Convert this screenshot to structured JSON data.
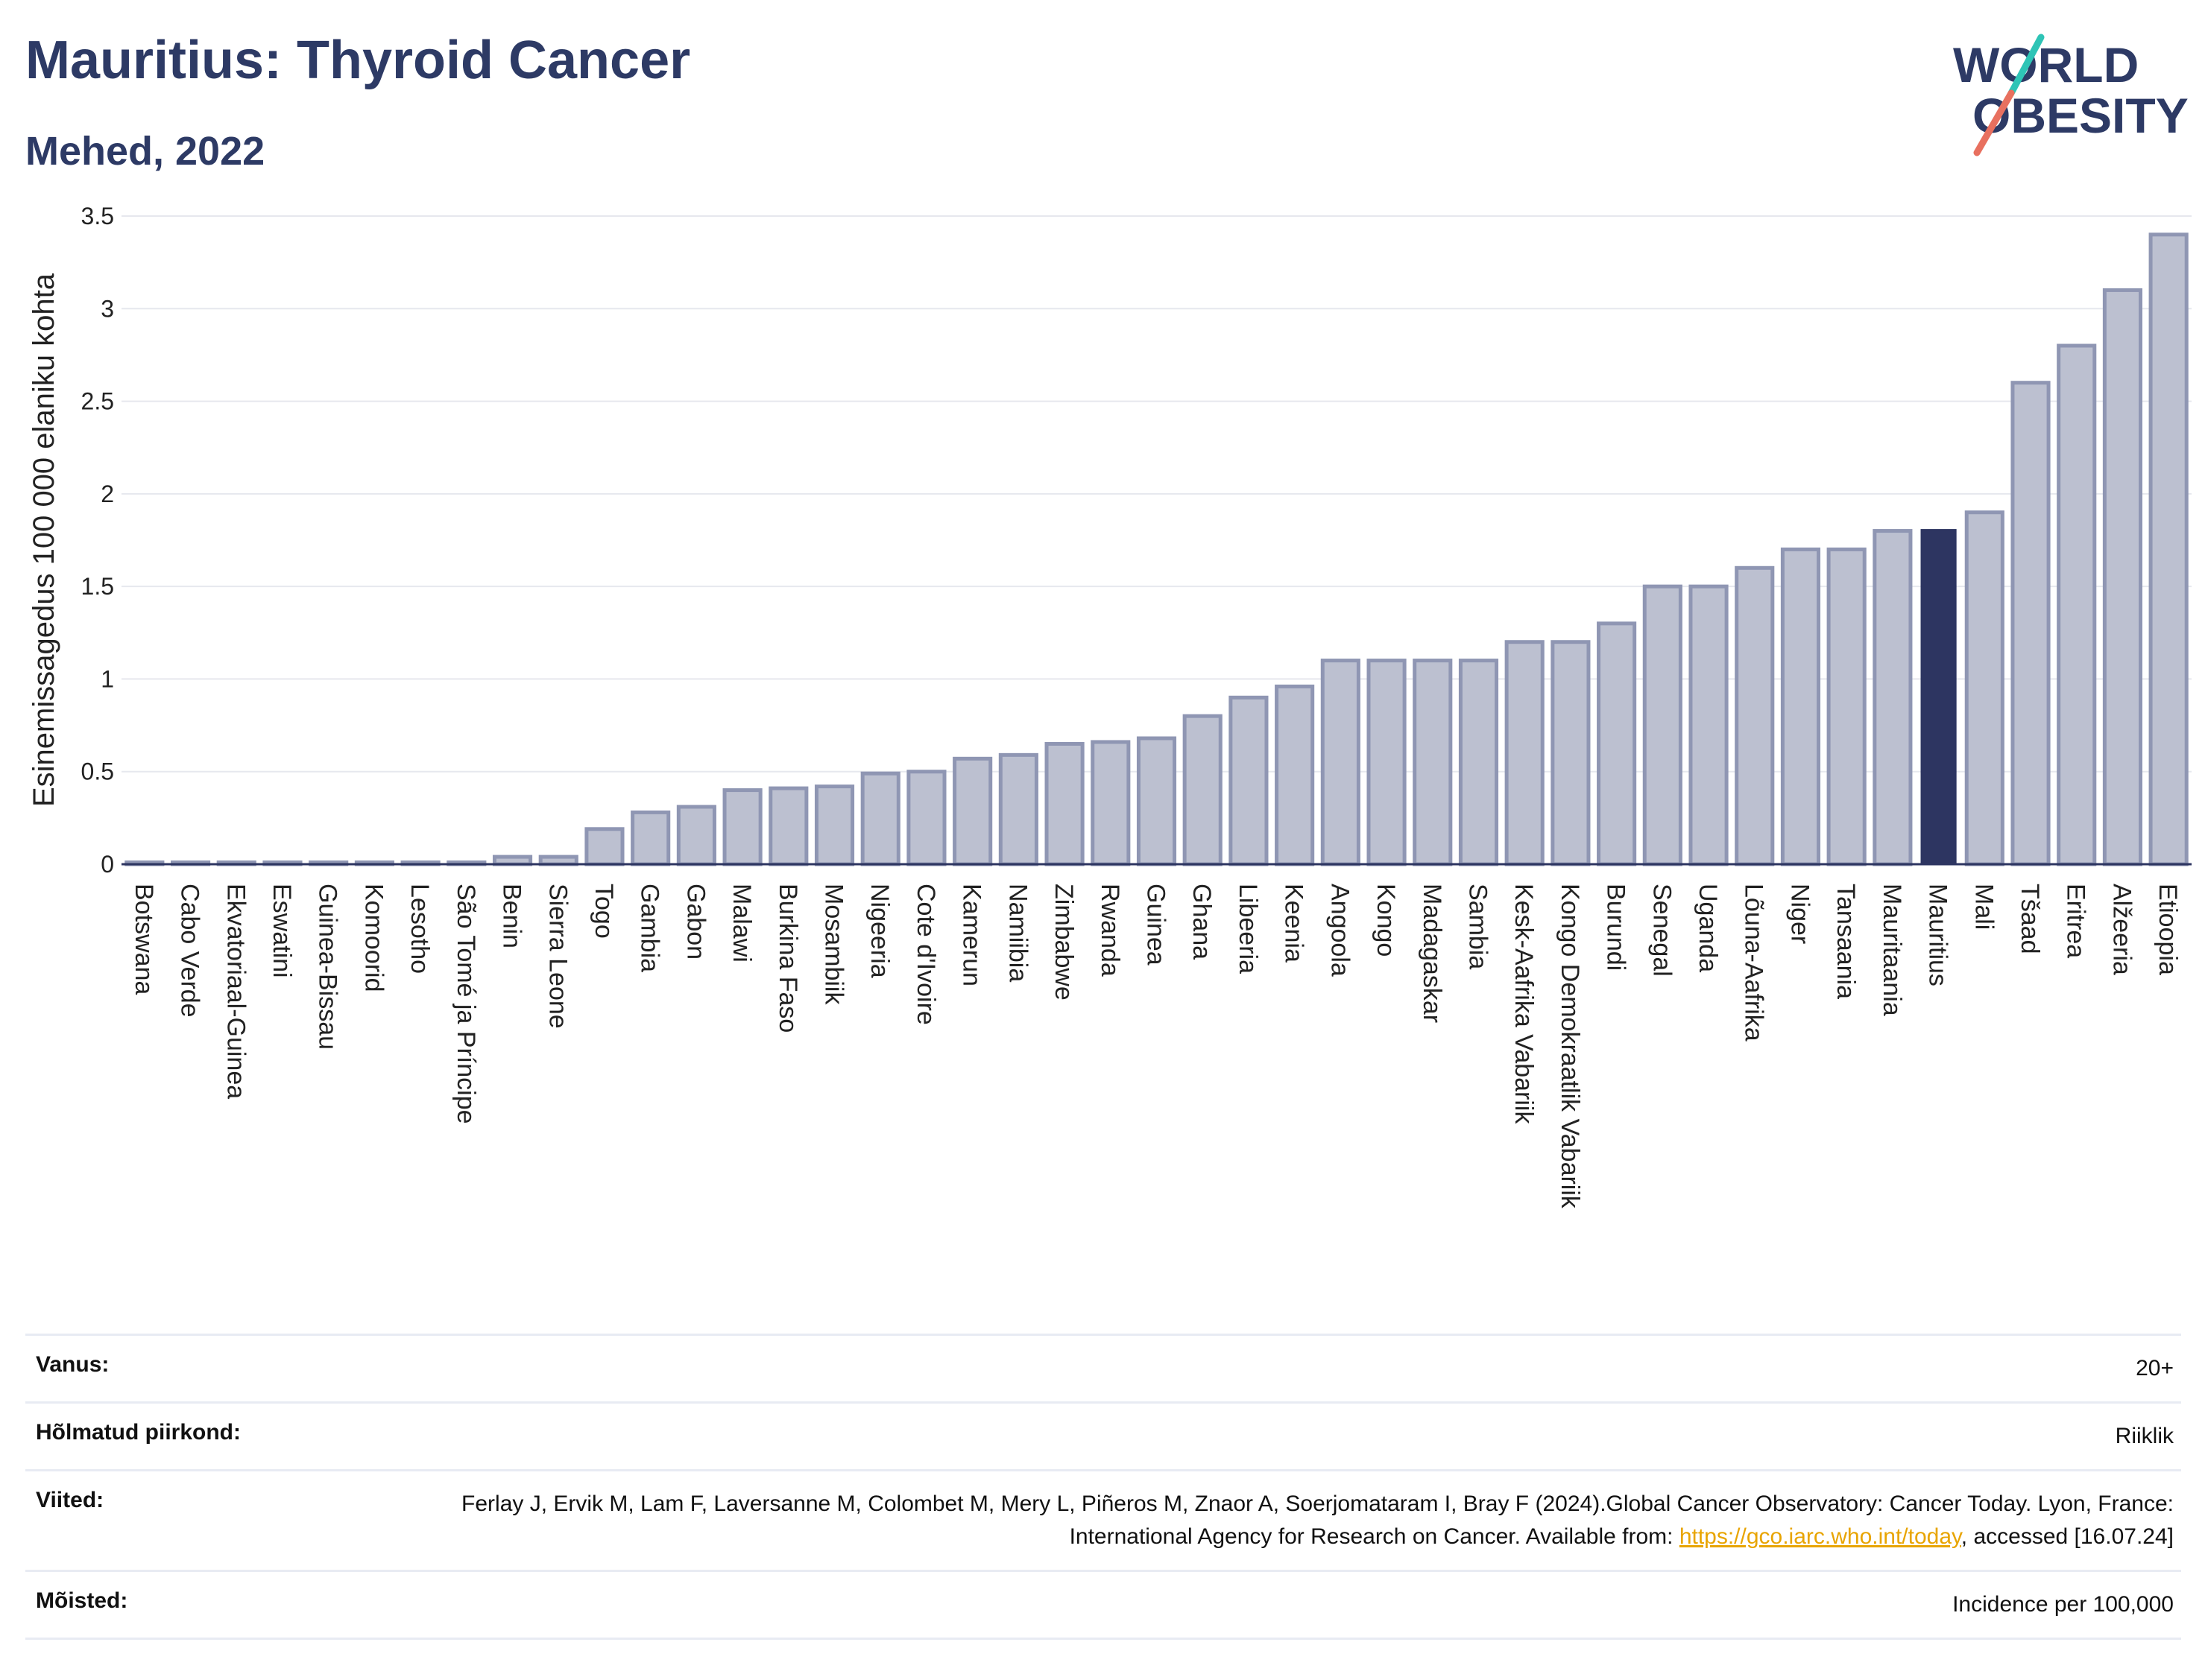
{
  "title": "Mauritius: Thyroid Cancer",
  "subtitle": "Mehed, 2022",
  "logo": {
    "line1": "WORLD",
    "line2": "OBESITY",
    "accent_colors": [
      "#2ec4b6",
      "#e8705f"
    ]
  },
  "colors": {
    "bar": "#bcc0d0",
    "bar_stroke": "#8f96b3",
    "highlight": "#2d3561",
    "grid": "#e6e8ee",
    "axis": "#2d3561"
  },
  "chart_data": {
    "type": "bar",
    "title": "Mauritius: Thyroid Cancer",
    "subtitle": "Mehed, 2022",
    "ylabel": "Esinemissagedus 100 000 elaniku kohta",
    "xlabel": "",
    "ylim": [
      0,
      3.5
    ],
    "yticks": [
      0,
      0.5,
      1,
      1.5,
      2,
      2.5,
      3,
      3.5
    ],
    "ytick_labels": [
      "0",
      "0.5",
      "1",
      "1.5",
      "2",
      "2.5",
      "3",
      "3.5"
    ],
    "grid": true,
    "highlight": "Mauritius",
    "categories": [
      "Botswana",
      "Cabo Verde",
      "Ekvatoriaal-Guinea",
      "Eswatini",
      "Guinea-Bissau",
      "Komoorid",
      "Lesotho",
      "São Tomé ja Príncipe",
      "Benin",
      "Sierra Leone",
      "Togo",
      "Gambia",
      "Gabon",
      "Malawi",
      "Burkina Faso",
      "Mosambiik",
      "Nigeeria",
      "Cote d'Ivoire",
      "Kamerun",
      "Namiibia",
      "Zimbabwe",
      "Rwanda",
      "Guinea",
      "Ghana",
      "Libeeria",
      "Keenia",
      "Angoola",
      "Kongo",
      "Madagaskar",
      "Sambia",
      "Kesk-Aafrika Vabariik",
      "Kongo Demokraatlik Vabariik",
      "Burundi",
      "Senegal",
      "Uganda",
      "Lõuna-Aafrika",
      "Niger",
      "Tansaania",
      "Mauritaania",
      "Mauritius",
      "Mali",
      "Tšaad",
      "Eritrea",
      "Alžeeria",
      "Etioopia"
    ],
    "values": [
      0.01,
      0.01,
      0.01,
      0.01,
      0.01,
      0.01,
      0.01,
      0.01,
      0.04,
      0.04,
      0.19,
      0.28,
      0.31,
      0.4,
      0.41,
      0.42,
      0.49,
      0.5,
      0.57,
      0.59,
      0.65,
      0.66,
      0.68,
      0.8,
      0.9,
      0.96,
      1.1,
      1.1,
      1.1,
      1.1,
      1.2,
      1.2,
      1.3,
      1.5,
      1.5,
      1.6,
      1.7,
      1.7,
      1.8,
      1.81,
      1.9,
      2.6,
      2.8,
      3.1,
      3.4
    ]
  },
  "info": [
    {
      "label": "Vanus:",
      "value": "20+"
    },
    {
      "label": "Hõlmatud piirkond:",
      "value": "Riiklik"
    },
    {
      "label": "Viited:",
      "value_pre": "Ferlay J, Ervik M, Lam F, Laversanne M, Colombet M, Mery L, Piñeros M, Znaor A, Soerjomataram I, Bray F (2024).Global Cancer Observatory: Cancer Today. Lyon, France: International Agency for Research on Cancer. Available from: ",
      "link": "https://gco.iarc.who.int/today",
      "value_post": ", accessed [16.07.24]"
    },
    {
      "label": "Mõisted:",
      "value": "Incidence per 100,000"
    }
  ]
}
